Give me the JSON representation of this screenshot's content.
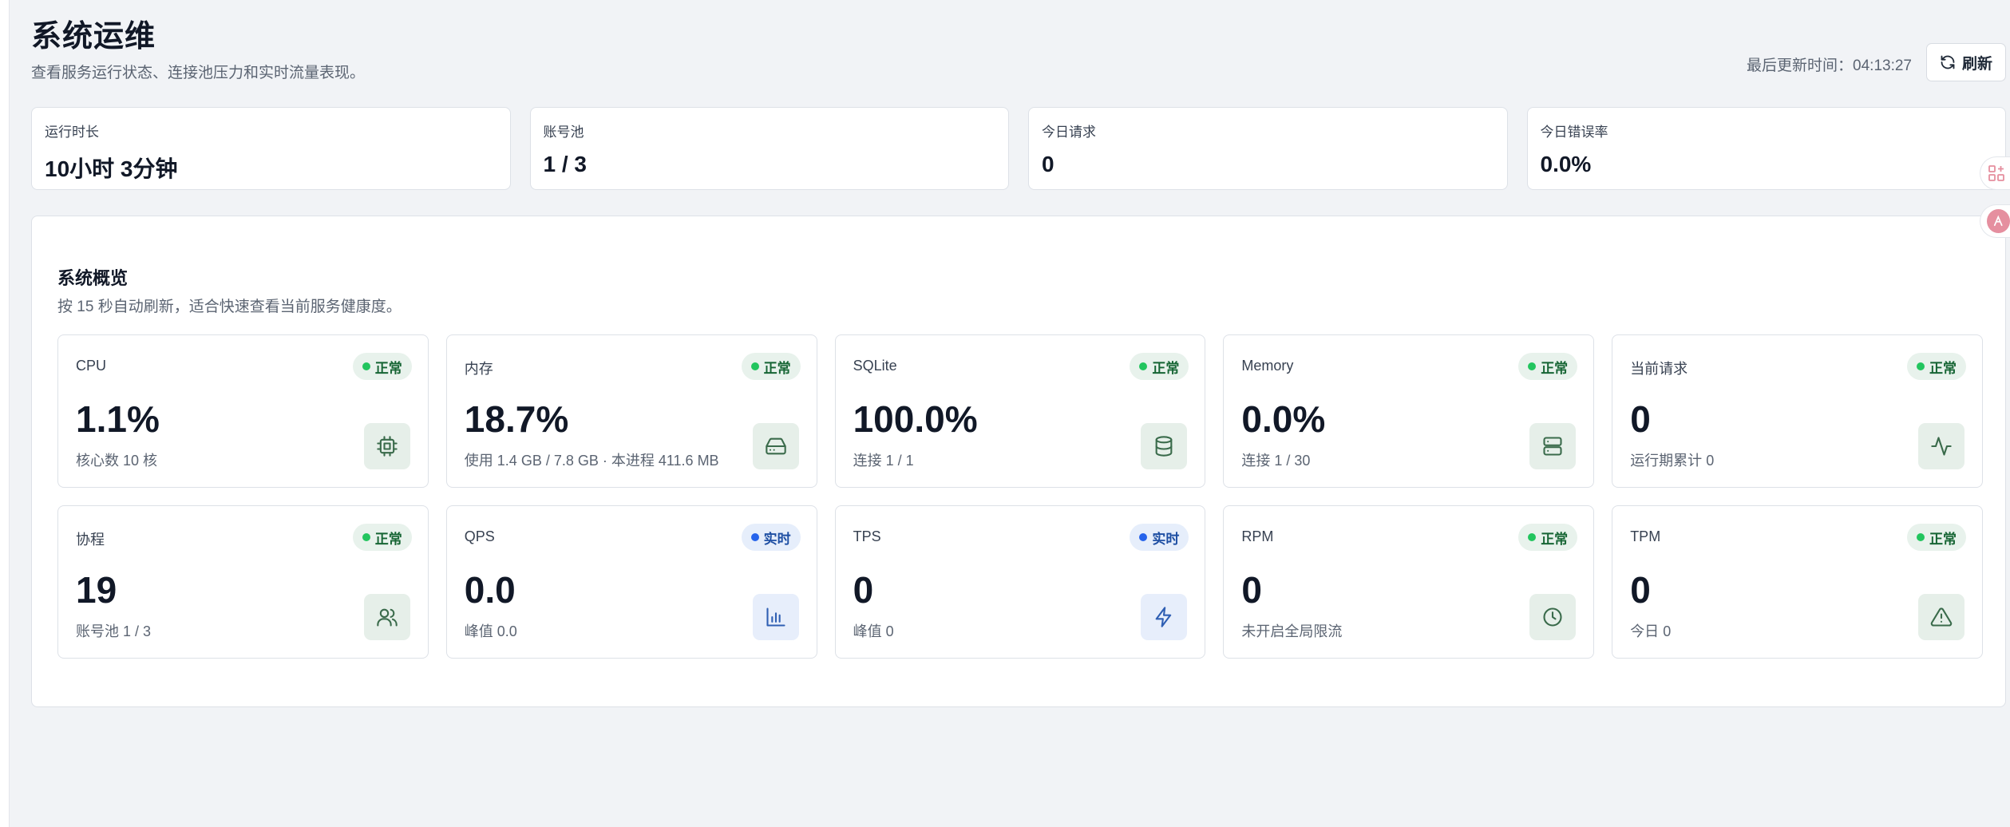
{
  "header": {
    "title": "系统运维",
    "subtitle": "查看服务运行状态、连接池压力和实时流量表现。",
    "update_time": "最后更新时间：04:13:27",
    "refresh_label": "刷新"
  },
  "stats": [
    {
      "label": "运行时长",
      "value": "10小时 3分钟"
    },
    {
      "label": "账号池",
      "value": "1 / 3"
    },
    {
      "label": "今日请求",
      "value": "0"
    },
    {
      "label": "今日错误率",
      "value": "0.0%"
    }
  ],
  "overview": {
    "title": "系统概览",
    "desc": "按 15 秒自动刷新，适合快速查看当前服务健康度。",
    "metrics": [
      {
        "label": "CPU",
        "badge": "正常",
        "value": "1.1%",
        "sub": "核心数 10 核",
        "icon": "cpu-icon"
      },
      {
        "label": "内存",
        "badge": "正常",
        "value": "18.7%",
        "sub": "使用 1.4 GB / 7.8 GB · 本进程 411.6 MB",
        "icon": "hard-drive-icon"
      },
      {
        "label": "SQLite",
        "badge": "正常",
        "value": "100.0%",
        "sub": "连接 1 / 1",
        "icon": "database-icon"
      },
      {
        "label": "Memory",
        "badge": "正常",
        "value": "0.0%",
        "sub": "连接 1 / 30",
        "icon": "server-icon"
      },
      {
        "label": "当前请求",
        "badge": "正常",
        "value": "0",
        "sub": "运行期累计 0",
        "icon": "activity-icon"
      },
      {
        "label": "协程",
        "badge": "正常",
        "value": "19",
        "sub": "账号池 1 / 3",
        "icon": "users-icon"
      },
      {
        "label": "QPS",
        "badge": "实时",
        "value": "0.0",
        "sub": "峰值 0.0",
        "icon": "bar-chart-icon"
      },
      {
        "label": "TPS",
        "badge": "实时",
        "value": "0",
        "sub": "峰值 0",
        "icon": "zap-icon"
      },
      {
        "label": "RPM",
        "badge": "正常",
        "value": "0",
        "sub": "未开启全局限流",
        "icon": "clock-icon"
      },
      {
        "label": "TPM",
        "badge": "正常",
        "value": "0",
        "sub": "今日 0",
        "icon": "alert-triangle-icon"
      }
    ]
  },
  "colors": {
    "ok_badge_bg": "#e8f2ec",
    "ok_dot": "#22c55e",
    "live_badge_bg": "#e6eefb",
    "live_dot": "#2563eb"
  }
}
